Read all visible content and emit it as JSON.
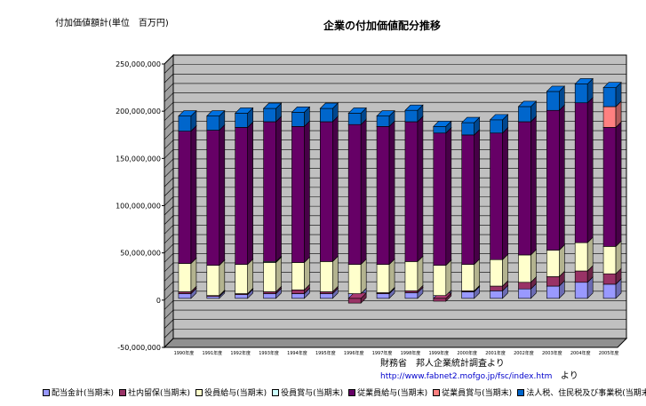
{
  "chart_data": {
    "type": "bar",
    "stacked": true,
    "title": "企業の付加価値配分推移",
    "ylabel": "付加価値額計(単位　百万円)",
    "ylim": [
      -50000000,
      250000000
    ],
    "yticks": [
      -50000000,
      0,
      50000000,
      100000000,
      150000000,
      200000000,
      250000000
    ],
    "ytick_labels": [
      "-50,000,000",
      "0",
      "50,000,000",
      "100,000,000",
      "150,000,000",
      "200,000,000",
      "250,000,000"
    ],
    "categories": [
      "1990年度",
      "1991年度",
      "1992年度",
      "1993年度",
      "1994年度",
      "1995年度",
      "1996年度",
      "1997年度",
      "1998年度",
      "1999年度",
      "2000年度",
      "2001年度",
      "2002年度",
      "2003年度",
      "2004年度",
      "2005年度"
    ],
    "series": [
      {
        "name": "配当金計(当期末)",
        "color": "#9999ff",
        "values": [
          5000000,
          2000000,
          4000000,
          5000000,
          5000000,
          5000000,
          5000000,
          5000000,
          6000000,
          3000000,
          7000000,
          8000000,
          10000000,
          13000000,
          17000000,
          15000000
        ]
      },
      {
        "name": "社内留保(当期末)",
        "color": "#993366",
        "values": [
          2000000,
          1000000,
          1000000,
          2000000,
          4000000,
          2000000,
          -5000000,
          1000000,
          2000000,
          -3000000,
          1000000,
          5000000,
          7000000,
          10000000,
          12000000,
          11000000
        ]
      },
      {
        "name": "役員給与(当期末)",
        "color": "#ffffcc",
        "values": [
          30000000,
          32000000,
          31000000,
          31000000,
          29000000,
          32000000,
          31000000,
          30000000,
          31000000,
          32000000,
          28000000,
          28000000,
          29000000,
          28000000,
          30000000,
          29000000
        ]
      },
      {
        "name": "役員賞与(当期末)",
        "color": "#ccffff",
        "values": [
          0,
          0,
          0,
          1000000,
          0,
          0,
          0,
          0,
          0,
          0,
          0,
          0,
          0,
          0,
          0,
          0
        ]
      },
      {
        "name": "従業員給与(当期末)",
        "color": "#660066",
        "values": [
          140000000,
          143000000,
          145000000,
          148000000,
          144000000,
          148000000,
          148000000,
          146000000,
          148000000,
          140000000,
          137000000,
          134000000,
          141000000,
          148000000,
          148000000,
          126000000
        ]
      },
      {
        "name": "従業員賞与(当期末)",
        "color": "#ff8080",
        "values": [
          0,
          0,
          0,
          0,
          0,
          0,
          0,
          0,
          0,
          0,
          0,
          0,
          0,
          0,
          0,
          22000000
        ]
      },
      {
        "name": "法人税、住民税及び事業税(当期末)",
        "color": "#0066cc",
        "values": [
          16000000,
          15000000,
          15000000,
          14000000,
          15000000,
          14000000,
          12000000,
          11000000,
          12000000,
          7000000,
          13000000,
          14000000,
          16000000,
          20000000,
          20000000,
          20000000
        ]
      }
    ],
    "grid": true,
    "legend_position": "bottom"
  },
  "source": {
    "line1": "財務省　邦人企業統計調査より",
    "url": "http://www.fabnet2.mofgo.jp/fsc/index.htm",
    "suffix": "より"
  }
}
